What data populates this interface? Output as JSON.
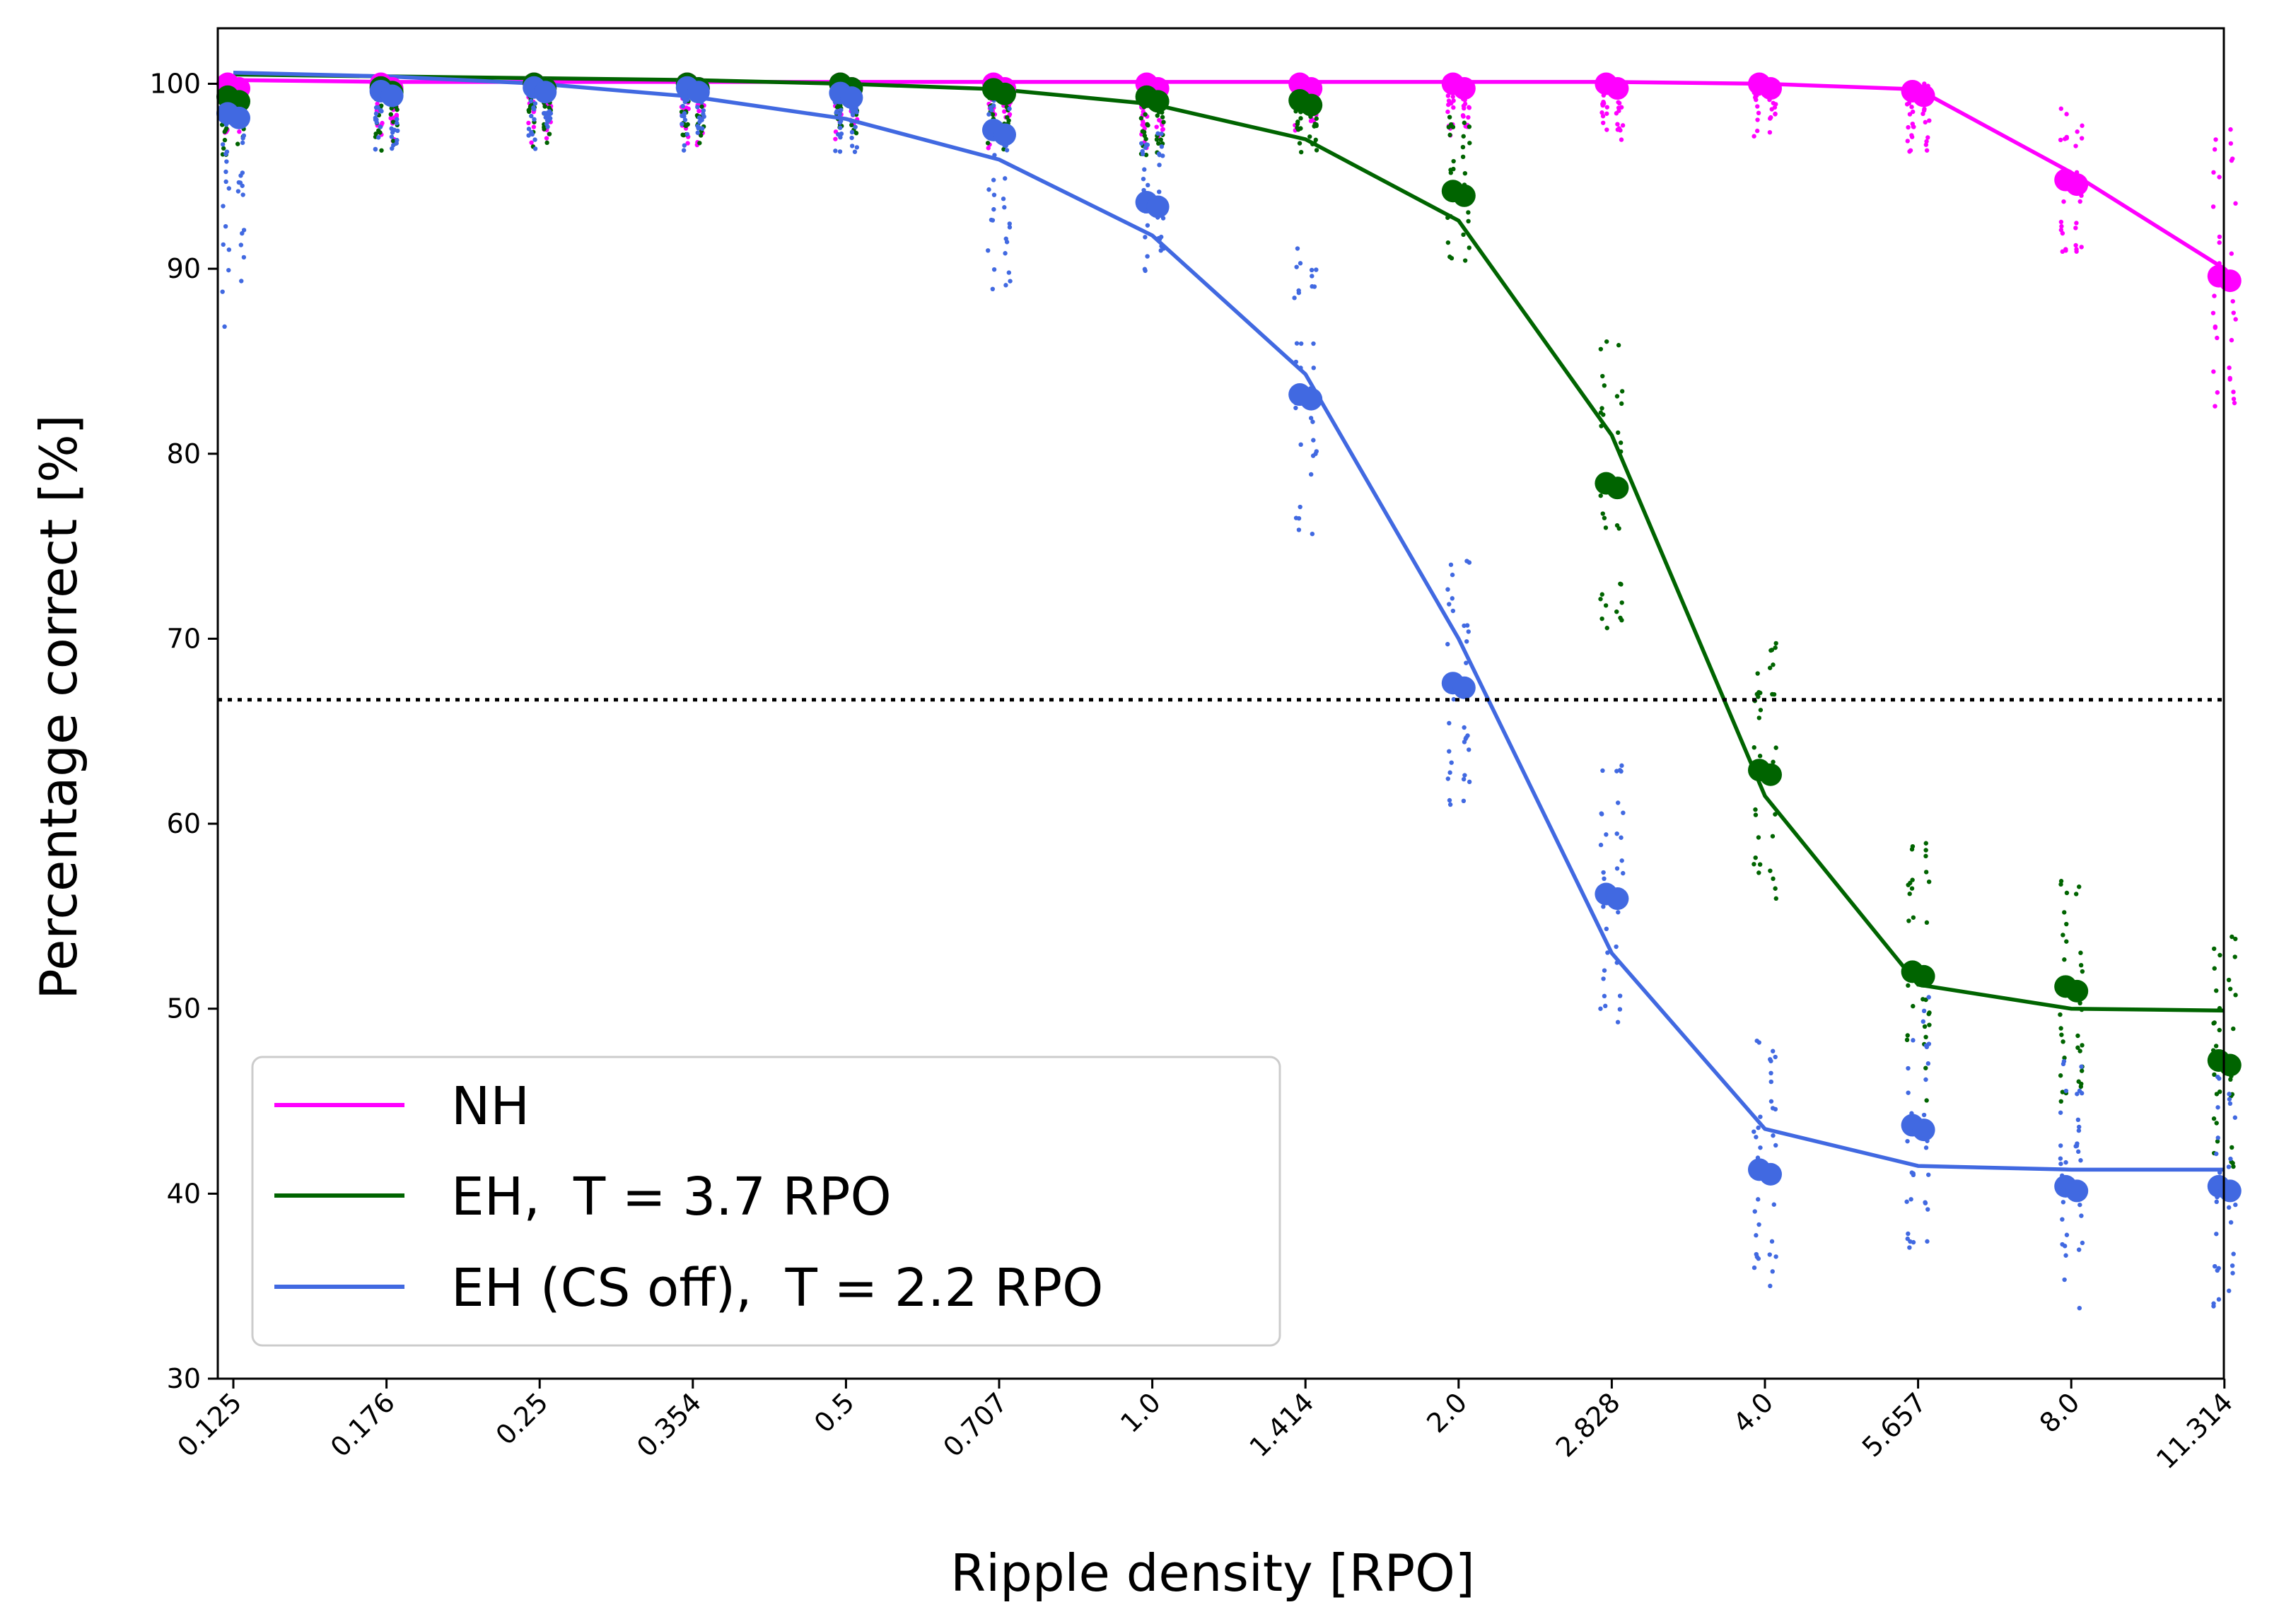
{
  "chart_data": {
    "type": "line",
    "title": "",
    "xlabel": "Ripple density [RPO]",
    "ylabel": "Percentage correct [%]",
    "categories": [
      "0.125",
      "0.176",
      "0.25",
      "0.354",
      "0.5",
      "0.707",
      "1.0",
      "1.414",
      "2.0",
      "2.828",
      "4.0",
      "5.657",
      "8.0",
      "11.314"
    ],
    "ylim": [
      30,
      103
    ],
    "yticks": [
      30,
      40,
      50,
      60,
      70,
      80,
      90,
      100
    ],
    "grid": false,
    "chance_line": 66.7,
    "legend_position": "lower-left",
    "series": [
      {
        "name": "NH",
        "color": "#ff00ff",
        "fit": [
          100.2,
          100.1,
          100.1,
          100.1,
          100.1,
          100.1,
          100.1,
          100.1,
          100.1,
          100.1,
          100.0,
          99.7,
          95.2,
          90.0
        ],
        "means": [
          100.0,
          100.0,
          100.0,
          100.0,
          100.0,
          100.0,
          100.0,
          100.0,
          100.0,
          100.0,
          100.0,
          99.6,
          94.8,
          89.6
        ]
      },
      {
        "name": "EH,  T = 3.7 RPO",
        "color": "#006400",
        "fit": [
          100.5,
          100.4,
          100.3,
          100.2,
          100.0,
          99.7,
          98.9,
          97.0,
          92.6,
          81.0,
          61.5,
          51.3,
          50.0,
          49.9
        ],
        "means": [
          99.3,
          99.8,
          100.0,
          100.0,
          100.0,
          99.7,
          99.3,
          99.1,
          94.2,
          78.4,
          62.9,
          52.0,
          51.2,
          47.2
        ]
      },
      {
        "name": "EH (CS off),  T = 2.2 RPO",
        "color": "#4169e1",
        "fit": [
          100.6,
          100.4,
          100.0,
          99.3,
          98.1,
          95.9,
          91.8,
          84.3,
          70.0,
          53.0,
          43.5,
          41.5,
          41.3,
          41.3
        ],
        "means": [
          98.4,
          99.6,
          99.8,
          99.8,
          99.5,
          97.5,
          93.6,
          83.2,
          67.6,
          56.2,
          41.3,
          43.7,
          40.4,
          40.4
        ]
      }
    ]
  }
}
